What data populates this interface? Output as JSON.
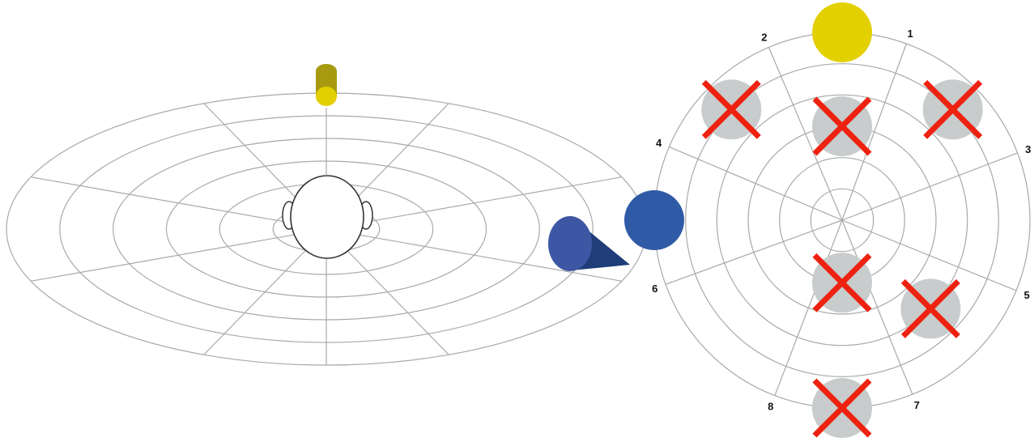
{
  "colors": {
    "grid": "#a9a9a9",
    "yellow_source": "#e2d000",
    "yellow_source_dark": "#a89a10",
    "blue_source": "#2f5aa6",
    "blue_source_dark": "#1f3d78",
    "excluded_circle": "#c8cccc",
    "excluded_mark": "#ee2211",
    "head_outline": "#333333"
  },
  "perspective_view": {
    "rings": 6,
    "spokes": 8,
    "head_icon": "head-top-view-icon",
    "sources": [
      {
        "name": "yellow-source",
        "shape": "upright-cylinder",
        "color_key": "yellow_source"
      },
      {
        "name": "blue-source",
        "shape": "cone-loudspeaker",
        "color_key": "blue_source"
      }
    ]
  },
  "top_view": {
    "rings": 6,
    "spokes": [
      {
        "label": "1",
        "angle_deg": 290
      },
      {
        "label": "2",
        "angle_deg": 247
      },
      {
        "label": "3",
        "angle_deg": 339
      },
      {
        "label": "4",
        "angle_deg": 203
      },
      {
        "label": "5",
        "angle_deg": 22
      },
      {
        "label": "6",
        "angle_deg": 160
      },
      {
        "label": "7",
        "angle_deg": 68
      },
      {
        "label": "8",
        "angle_deg": 111
      }
    ],
    "active_sources": [
      {
        "name": "yellow-source",
        "angle_deg": 270,
        "ring": 6,
        "color_key": "yellow_source"
      },
      {
        "name": "blue-source",
        "angle_deg": 180,
        "ring": 6,
        "color_key": "blue_source"
      }
    ],
    "excluded_positions": [
      {
        "angle_deg": 315,
        "ring": 5
      },
      {
        "angle_deg": 270,
        "ring": 3
      },
      {
        "angle_deg": 225,
        "ring": 5
      },
      {
        "angle_deg": 45,
        "ring": 4
      },
      {
        "angle_deg": 90,
        "ring": 2
      },
      {
        "angle_deg": 90,
        "ring": 6
      }
    ]
  }
}
